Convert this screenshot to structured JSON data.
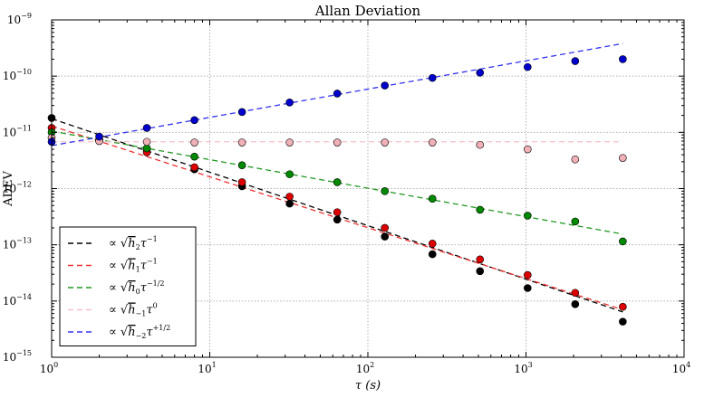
{
  "chart_data": {
    "type": "scatter",
    "title": "Allan Deviation",
    "xlabel": "τ (s)",
    "ylabel": "ADEV",
    "xscale": "log",
    "yscale": "log",
    "xlim": [
      1,
      10000
    ],
    "ylim": [
      1e-15,
      1e-09
    ],
    "grid": true,
    "legend_placement": "lower-left",
    "x_ticks": [
      {
        "base": "10",
        "exp": "0",
        "value": 1
      },
      {
        "base": "10",
        "exp": "1",
        "value": 10
      },
      {
        "base": "10",
        "exp": "2",
        "value": 100
      },
      {
        "base": "10",
        "exp": "3",
        "value": 1000
      },
      {
        "base": "10",
        "exp": "4",
        "value": 10000
      }
    ],
    "y_ticks": [
      {
        "base": "10",
        "exp": "−15",
        "value": 1e-15
      },
      {
        "base": "10",
        "exp": "−14",
        "value": 1e-14
      },
      {
        "base": "10",
        "exp": "−13",
        "value": 1e-13
      },
      {
        "base": "10",
        "exp": "−12",
        "value": 1e-12
      },
      {
        "base": "10",
        "exp": "−11",
        "value": 1e-11
      },
      {
        "base": "10",
        "exp": "−10",
        "value": 1e-10
      },
      {
        "base": "10",
        "exp": "−9",
        "value": 1e-09
      }
    ],
    "x": [
      1,
      2,
      4,
      8,
      16,
      32,
      64,
      128,
      256,
      512,
      1024,
      2048,
      4096
    ],
    "series": [
      {
        "color": "#000000",
        "values": [
          1.8e-11,
          7.2e-12,
          4.6e-12,
          2.2e-12,
          1.1e-12,
          5.4e-13,
          2.8e-13,
          1.4e-13,
          6.8e-14,
          3.4e-14,
          1.7e-14,
          8.8e-15,
          4.3e-15
        ]
      },
      {
        "color": "#dd0000",
        "values": [
          1.2e-11,
          7e-12,
          4.4e-12,
          2.4e-12,
          1.3e-12,
          7.2e-13,
          3.8e-13,
          2e-13,
          1.05e-13,
          5.5e-14,
          2.9e-14,
          1.4e-14,
          7.9e-15
        ]
      },
      {
        "color": "#008800",
        "values": [
          1e-11,
          7.5e-12,
          5.2e-12,
          3.7e-12,
          2.6e-12,
          1.8e-12,
          1.3e-12,
          9e-13,
          6.6e-13,
          4.2e-13,
          3.3e-13,
          2.6e-13,
          1.15e-13
        ]
      },
      {
        "color": "#f0b0b8",
        "values": [
          8e-12,
          7e-12,
          6.8e-12,
          6.6e-12,
          6.6e-12,
          6.6e-12,
          6.6e-12,
          6.6e-12,
          6.6e-12,
          6e-12,
          5e-12,
          3.3e-12,
          3.5e-12
        ]
      },
      {
        "color": "#0000cc",
        "values": [
          6.8e-12,
          8.4e-12,
          1.2e-11,
          1.65e-11,
          2.3e-11,
          3.4e-11,
          4.9e-11,
          6.8e-11,
          9.3e-11,
          1.15e-10,
          1.45e-10,
          1.85e-10,
          2e-10
        ]
      }
    ],
    "fits": [
      {
        "color": "#000000",
        "x_range": [
          1,
          4096
        ],
        "y_start": 1.75e-11,
        "y_end": 6.4e-15,
        "label": {
          "prefix": "∝ √",
          "h": "h",
          "sub": "2",
          "post": "τ",
          "sup": "−1"
        }
      },
      {
        "color": "#ee3333",
        "x_range": [
          1,
          4096
        ],
        "y_start": 1.3e-11,
        "y_end": 7e-15,
        "label": {
          "prefix": "∝ √",
          "h": "h",
          "sub": "1",
          "post": "τ",
          "sup": "−1"
        }
      },
      {
        "color": "#229922",
        "x_range": [
          1,
          4096
        ],
        "y_start": 1.05e-11,
        "y_end": 1.55e-13,
        "label": {
          "prefix": "∝ √",
          "h": "h",
          "sub": "0",
          "post": "τ",
          "sup": "−1/2"
        }
      },
      {
        "color": "#f5c0c8",
        "x_range": [
          1,
          4096
        ],
        "y_start": 6.8e-12,
        "y_end": 6.8e-12,
        "label": {
          "prefix": "∝ √",
          "h": "h",
          "sub": "−1",
          "post": "τ",
          "sup": "0"
        }
      },
      {
        "color": "#3333ee",
        "x_range": [
          1,
          4096
        ],
        "y_start": 5.8e-12,
        "y_end": 3.8e-10,
        "label": {
          "prefix": "∝ √",
          "h": "h",
          "sub": "−2",
          "post": "τ",
          "sup": "+1/2"
        }
      }
    ]
  }
}
